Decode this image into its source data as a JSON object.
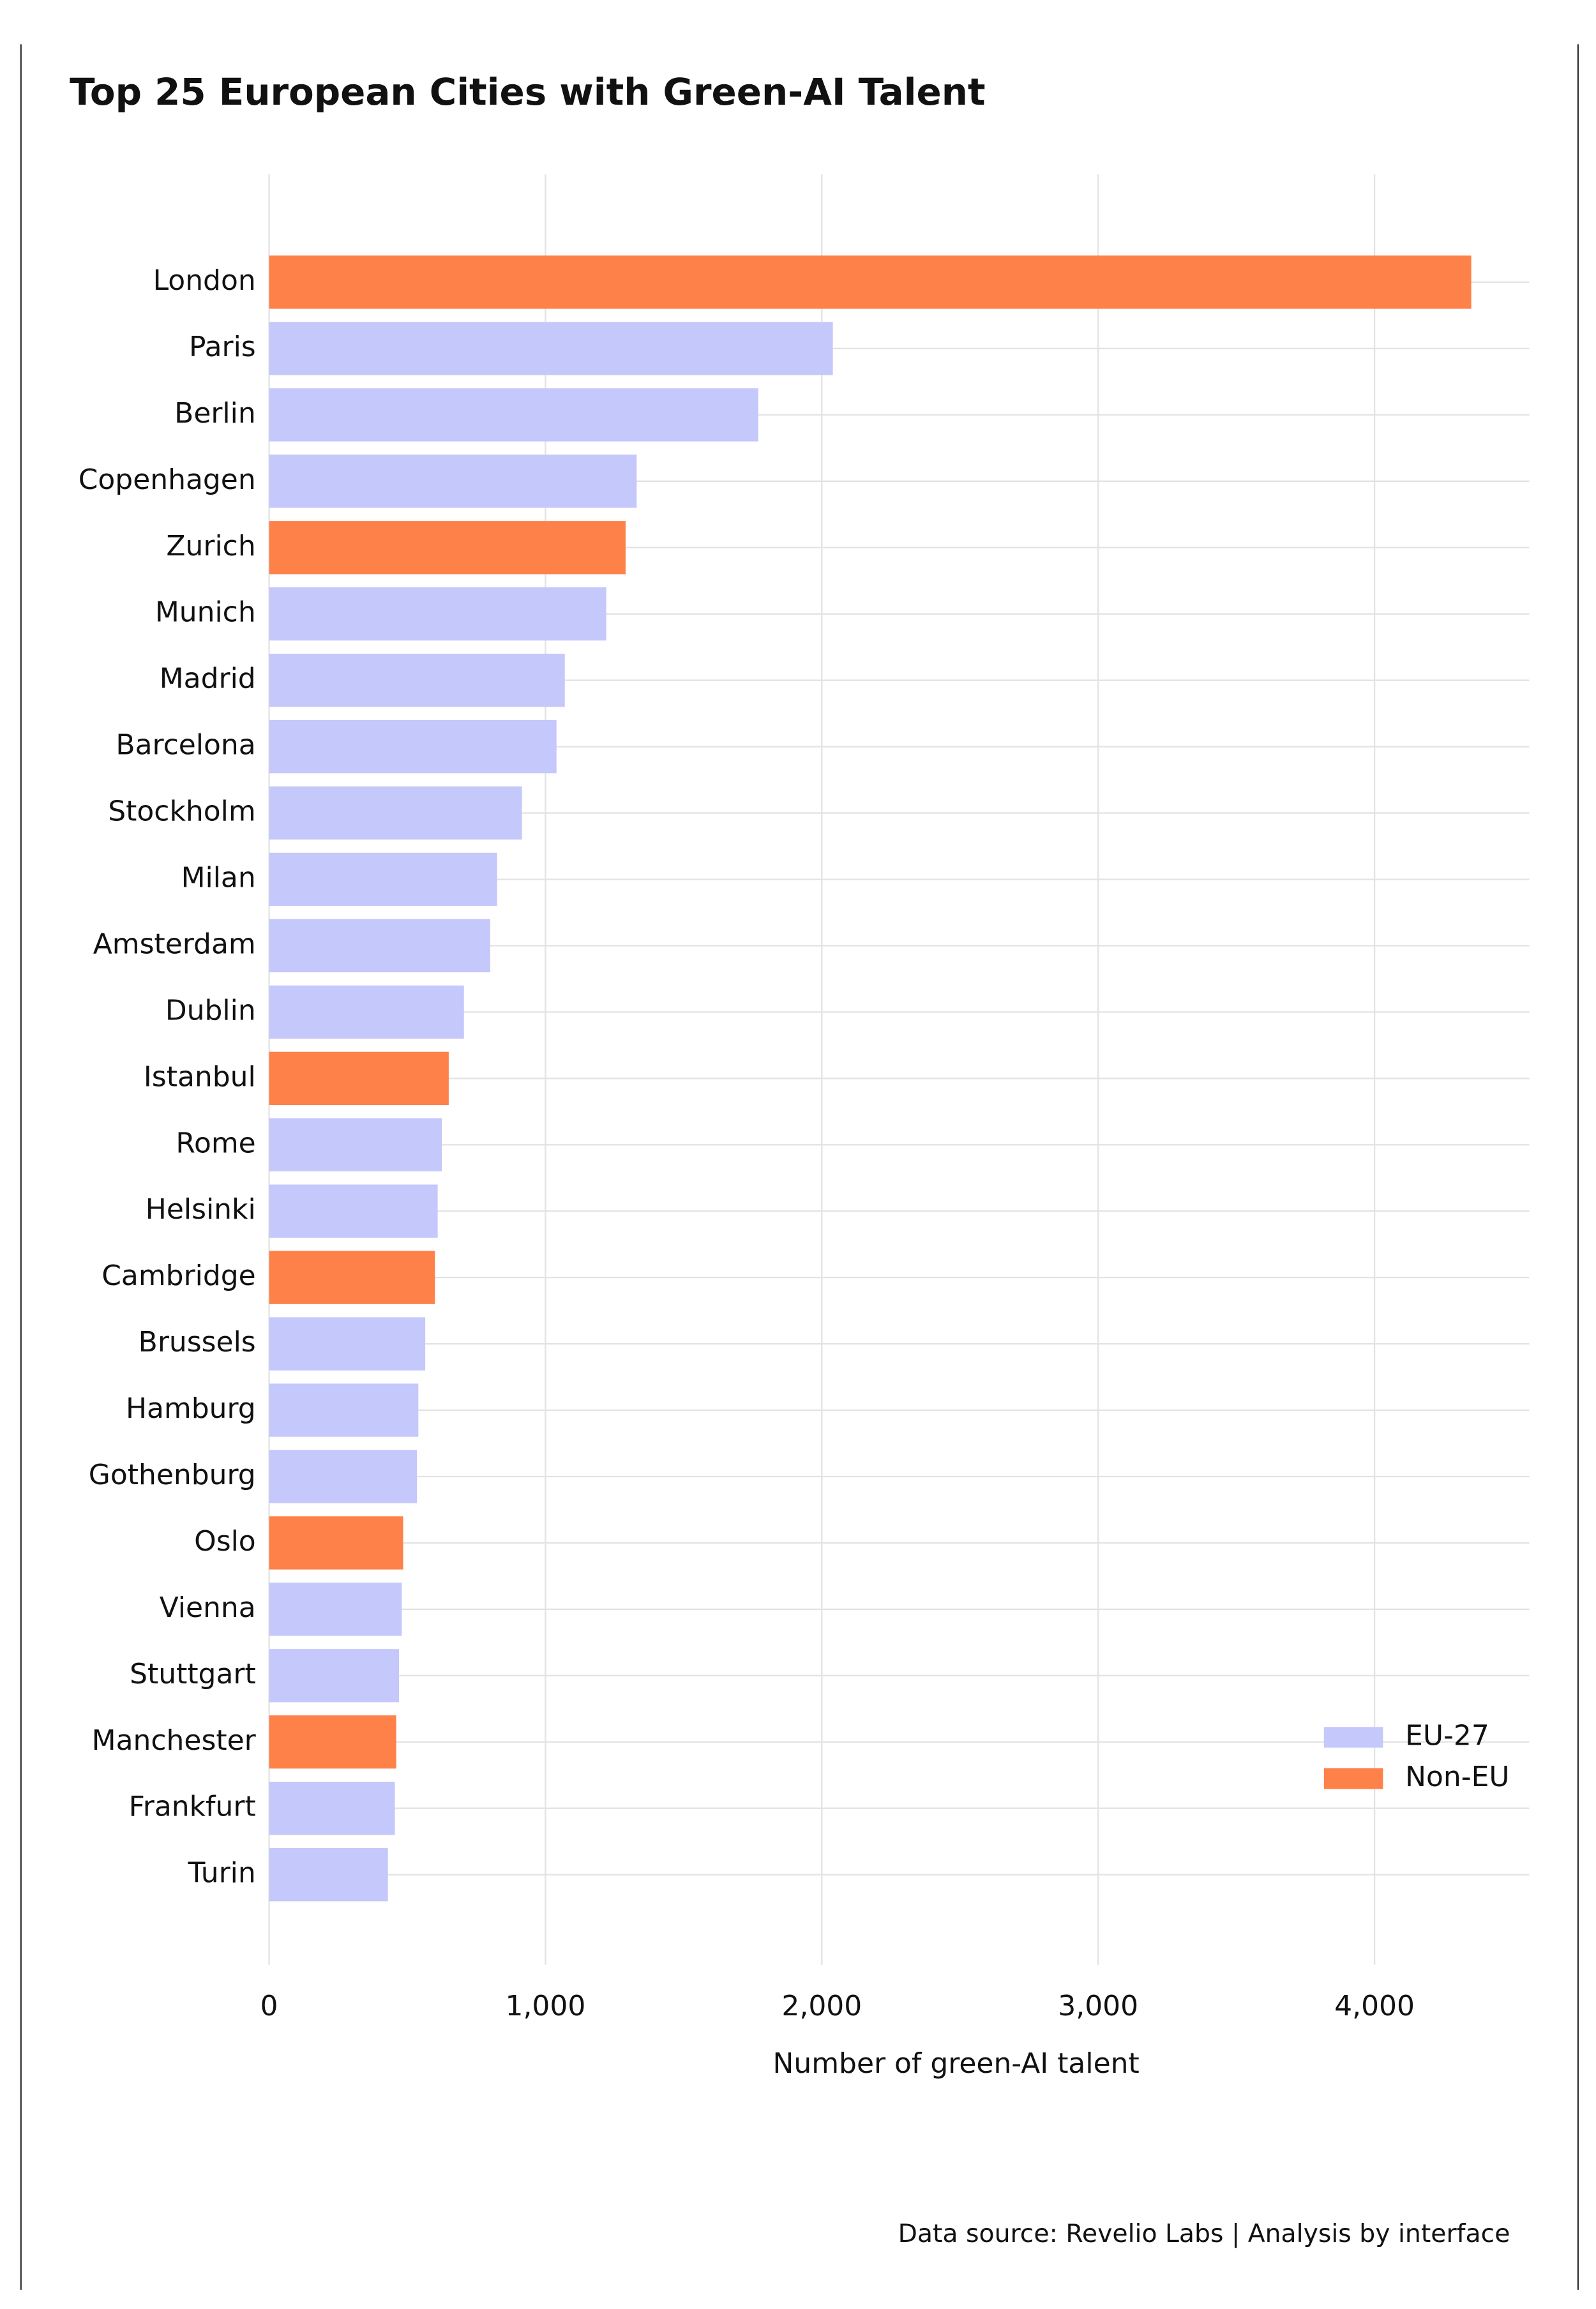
{
  "chart_data": {
    "type": "bar",
    "orientation": "horizontal",
    "title": "Top 25 European Cities with Green-AI Talent",
    "x_label": "Number of green-AI talent",
    "source": "Data source: Revelio Labs | Analysis by interface",
    "categories": [
      "London",
      "Paris",
      "Berlin",
      "Copenhagen",
      "Zurich",
      "Munich",
      "Madrid",
      "Barcelona",
      "Stockholm",
      "Milan",
      "Amsterdam",
      "Dublin",
      "Istanbul",
      "Rome",
      "Helsinki",
      "Cambridge",
      "Brussels",
      "Hamburg",
      "Gothenburg",
      "Oslo",
      "Vienna",
      "Stuttgart",
      "Manchester",
      "Frankfurt",
      "Turin"
    ],
    "series": [
      {
        "name": "EU-27",
        "color": "#c5c8fb",
        "values": [
          null,
          2040,
          1770,
          1330,
          null,
          1220,
          1070,
          1040,
          915,
          825,
          800,
          705,
          null,
          625,
          610,
          null,
          565,
          540,
          535,
          null,
          480,
          470,
          null,
          455,
          430
        ]
      },
      {
        "name": "Non-EU",
        "color": "#ff814a",
        "values": [
          4350,
          null,
          null,
          null,
          1290,
          null,
          null,
          null,
          null,
          null,
          null,
          null,
          650,
          null,
          null,
          600,
          null,
          null,
          null,
          485,
          null,
          null,
          460,
          null,
          null
        ]
      }
    ],
    "xlim": [
      0,
      4560
    ],
    "xticks": [
      0,
      {
        "value": 1000,
        "label": "1,000"
      },
      {
        "value": 2000,
        "label": "2,000"
      },
      {
        "value": 3000,
        "label": "3,000"
      },
      {
        "value": 4000,
        "label": "4,000"
      }
    ],
    "grid": true,
    "legend": "lower right"
  }
}
